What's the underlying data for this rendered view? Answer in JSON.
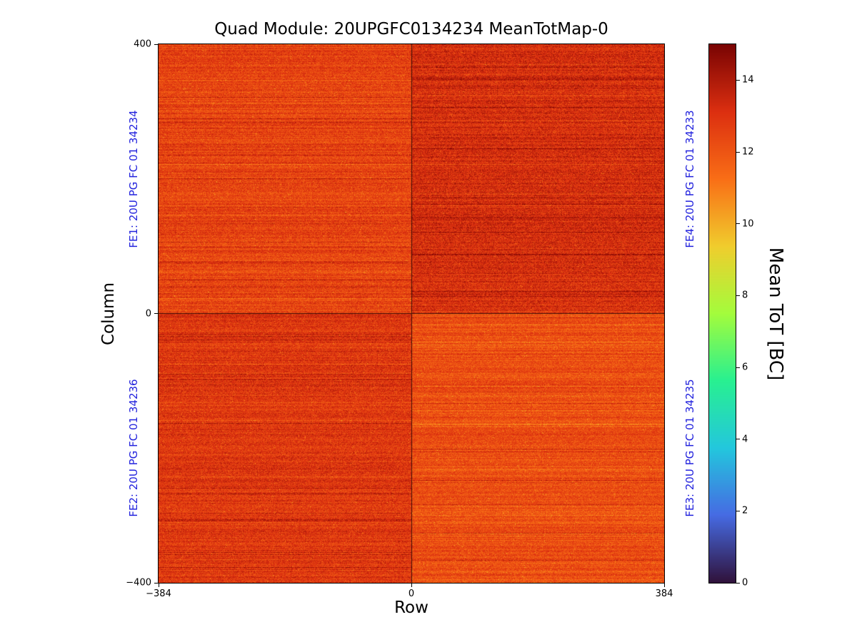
{
  "chart_data": {
    "type": "heatmap",
    "title": "Quad Module: 20UPGFC0134234 MeanTotMap-0",
    "xlabel": "Row",
    "ylabel": "Column",
    "xlim": [
      -384,
      384
    ],
    "ylim": [
      -400,
      400
    ],
    "grid": false,
    "x_ticks": [
      {
        "value": -384,
        "label": "−384"
      },
      {
        "value": 0,
        "label": "0"
      },
      {
        "value": 384,
        "label": "384"
      }
    ],
    "y_ticks": [
      {
        "value": 400,
        "label": "400"
      },
      {
        "value": 0,
        "label": "0"
      },
      {
        "value": -400,
        "label": "−400"
      }
    ],
    "colorbar": {
      "label": "Mean ToT [BC]",
      "colormap": "turbo",
      "range": [
        0,
        15
      ],
      "position": "right",
      "ticks": [
        {
          "value": 0,
          "label": "0"
        },
        {
          "value": 2,
          "label": "2"
        },
        {
          "value": 4,
          "label": "4"
        },
        {
          "value": 6,
          "label": "6"
        },
        {
          "value": 8,
          "label": "8"
        },
        {
          "value": 10,
          "label": "10"
        },
        {
          "value": 12,
          "label": "12"
        },
        {
          "value": 14,
          "label": "14"
        }
      ]
    },
    "quadrants": [
      {
        "id": "FE1",
        "label": "FE1: 20U PG FC 01 34234",
        "position": "top-left",
        "approx_mean_tot": 12.5,
        "row_spread": 0.5,
        "pixel_spread": 0.85,
        "seed": 11
      },
      {
        "id": "FE4",
        "label": "FE4: 20U PG FC 01 34233",
        "position": "top-right",
        "approx_mean_tot": 13.2,
        "row_spread": 0.4,
        "pixel_spread": 0.9,
        "seed": 22
      },
      {
        "id": "FE2",
        "label": "FE2: 20U PG FC 01 34236",
        "position": "bottom-left",
        "approx_mean_tot": 12.9,
        "row_spread": 0.4,
        "pixel_spread": 0.85,
        "seed": 33
      },
      {
        "id": "FE3",
        "label": "FE3: 20U PG FC 01 34235",
        "position": "bottom-right",
        "approx_mean_tot": 12.2,
        "row_spread": 0.45,
        "pixel_spread": 0.8,
        "seed": 44
      }
    ],
    "fe_label_color": "#2222dd",
    "turbo_anchors": [
      [
        0.0,
        [
          48,
          18,
          59
        ]
      ],
      [
        0.125,
        [
          70,
          107,
          227
        ]
      ],
      [
        0.25,
        [
          35,
          199,
          221
        ]
      ],
      [
        0.375,
        [
          40,
          240,
          145
        ]
      ],
      [
        0.5,
        [
          164,
          252,
          60
        ]
      ],
      [
        0.625,
        [
          240,
          205,
          45
        ]
      ],
      [
        0.75,
        [
          249,
          110,
          22
        ]
      ],
      [
        0.875,
        [
          220,
          47,
          16
        ]
      ],
      [
        1.0,
        [
          122,
          4,
          3
        ]
      ]
    ]
  }
}
